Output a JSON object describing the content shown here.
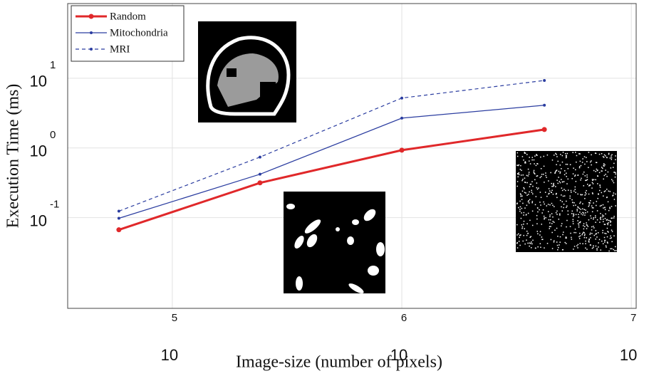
{
  "chart_data": {
    "type": "line",
    "x_label": "Image-size (number of pixels)",
    "y_label": "Execution Time (ms)",
    "log_x": true,
    "log_y": true,
    "grid": true,
    "legend": "top-left",
    "x": [
      58500,
      241000,
      1000000,
      4180000
    ],
    "series": [
      {
        "name": "Random",
        "color": "#e0282a",
        "dashed": false,
        "values": [
          0.067,
          0.316,
          0.93,
          1.84
        ]
      },
      {
        "name": "Mitochondria",
        "color": "#2b3da0",
        "dashed": false,
        "values": [
          0.098,
          0.42,
          2.68,
          4.1
        ]
      },
      {
        "name": "MRI",
        "color": "#2b3da0",
        "dashed": true,
        "values": [
          0.124,
          0.74,
          5.2,
          9.3
        ]
      }
    ],
    "xlim": [
      35000,
      10500000
    ],
    "ylim": [
      0.005,
      118
    ],
    "xticks": [
      {
        "value": 100000,
        "label": "10",
        "exponent": "5"
      },
      {
        "value": 1000000,
        "label": "10",
        "exponent": "6"
      },
      {
        "value": 10000000,
        "label": "10",
        "exponent": "7"
      }
    ],
    "yticks": [
      {
        "value": 0.1,
        "label": "10",
        "exponent": "-1"
      },
      {
        "value": 1,
        "label": "10",
        "exponent": "0"
      },
      {
        "value": 10,
        "label": "10",
        "exponent": "1"
      }
    ]
  }
}
